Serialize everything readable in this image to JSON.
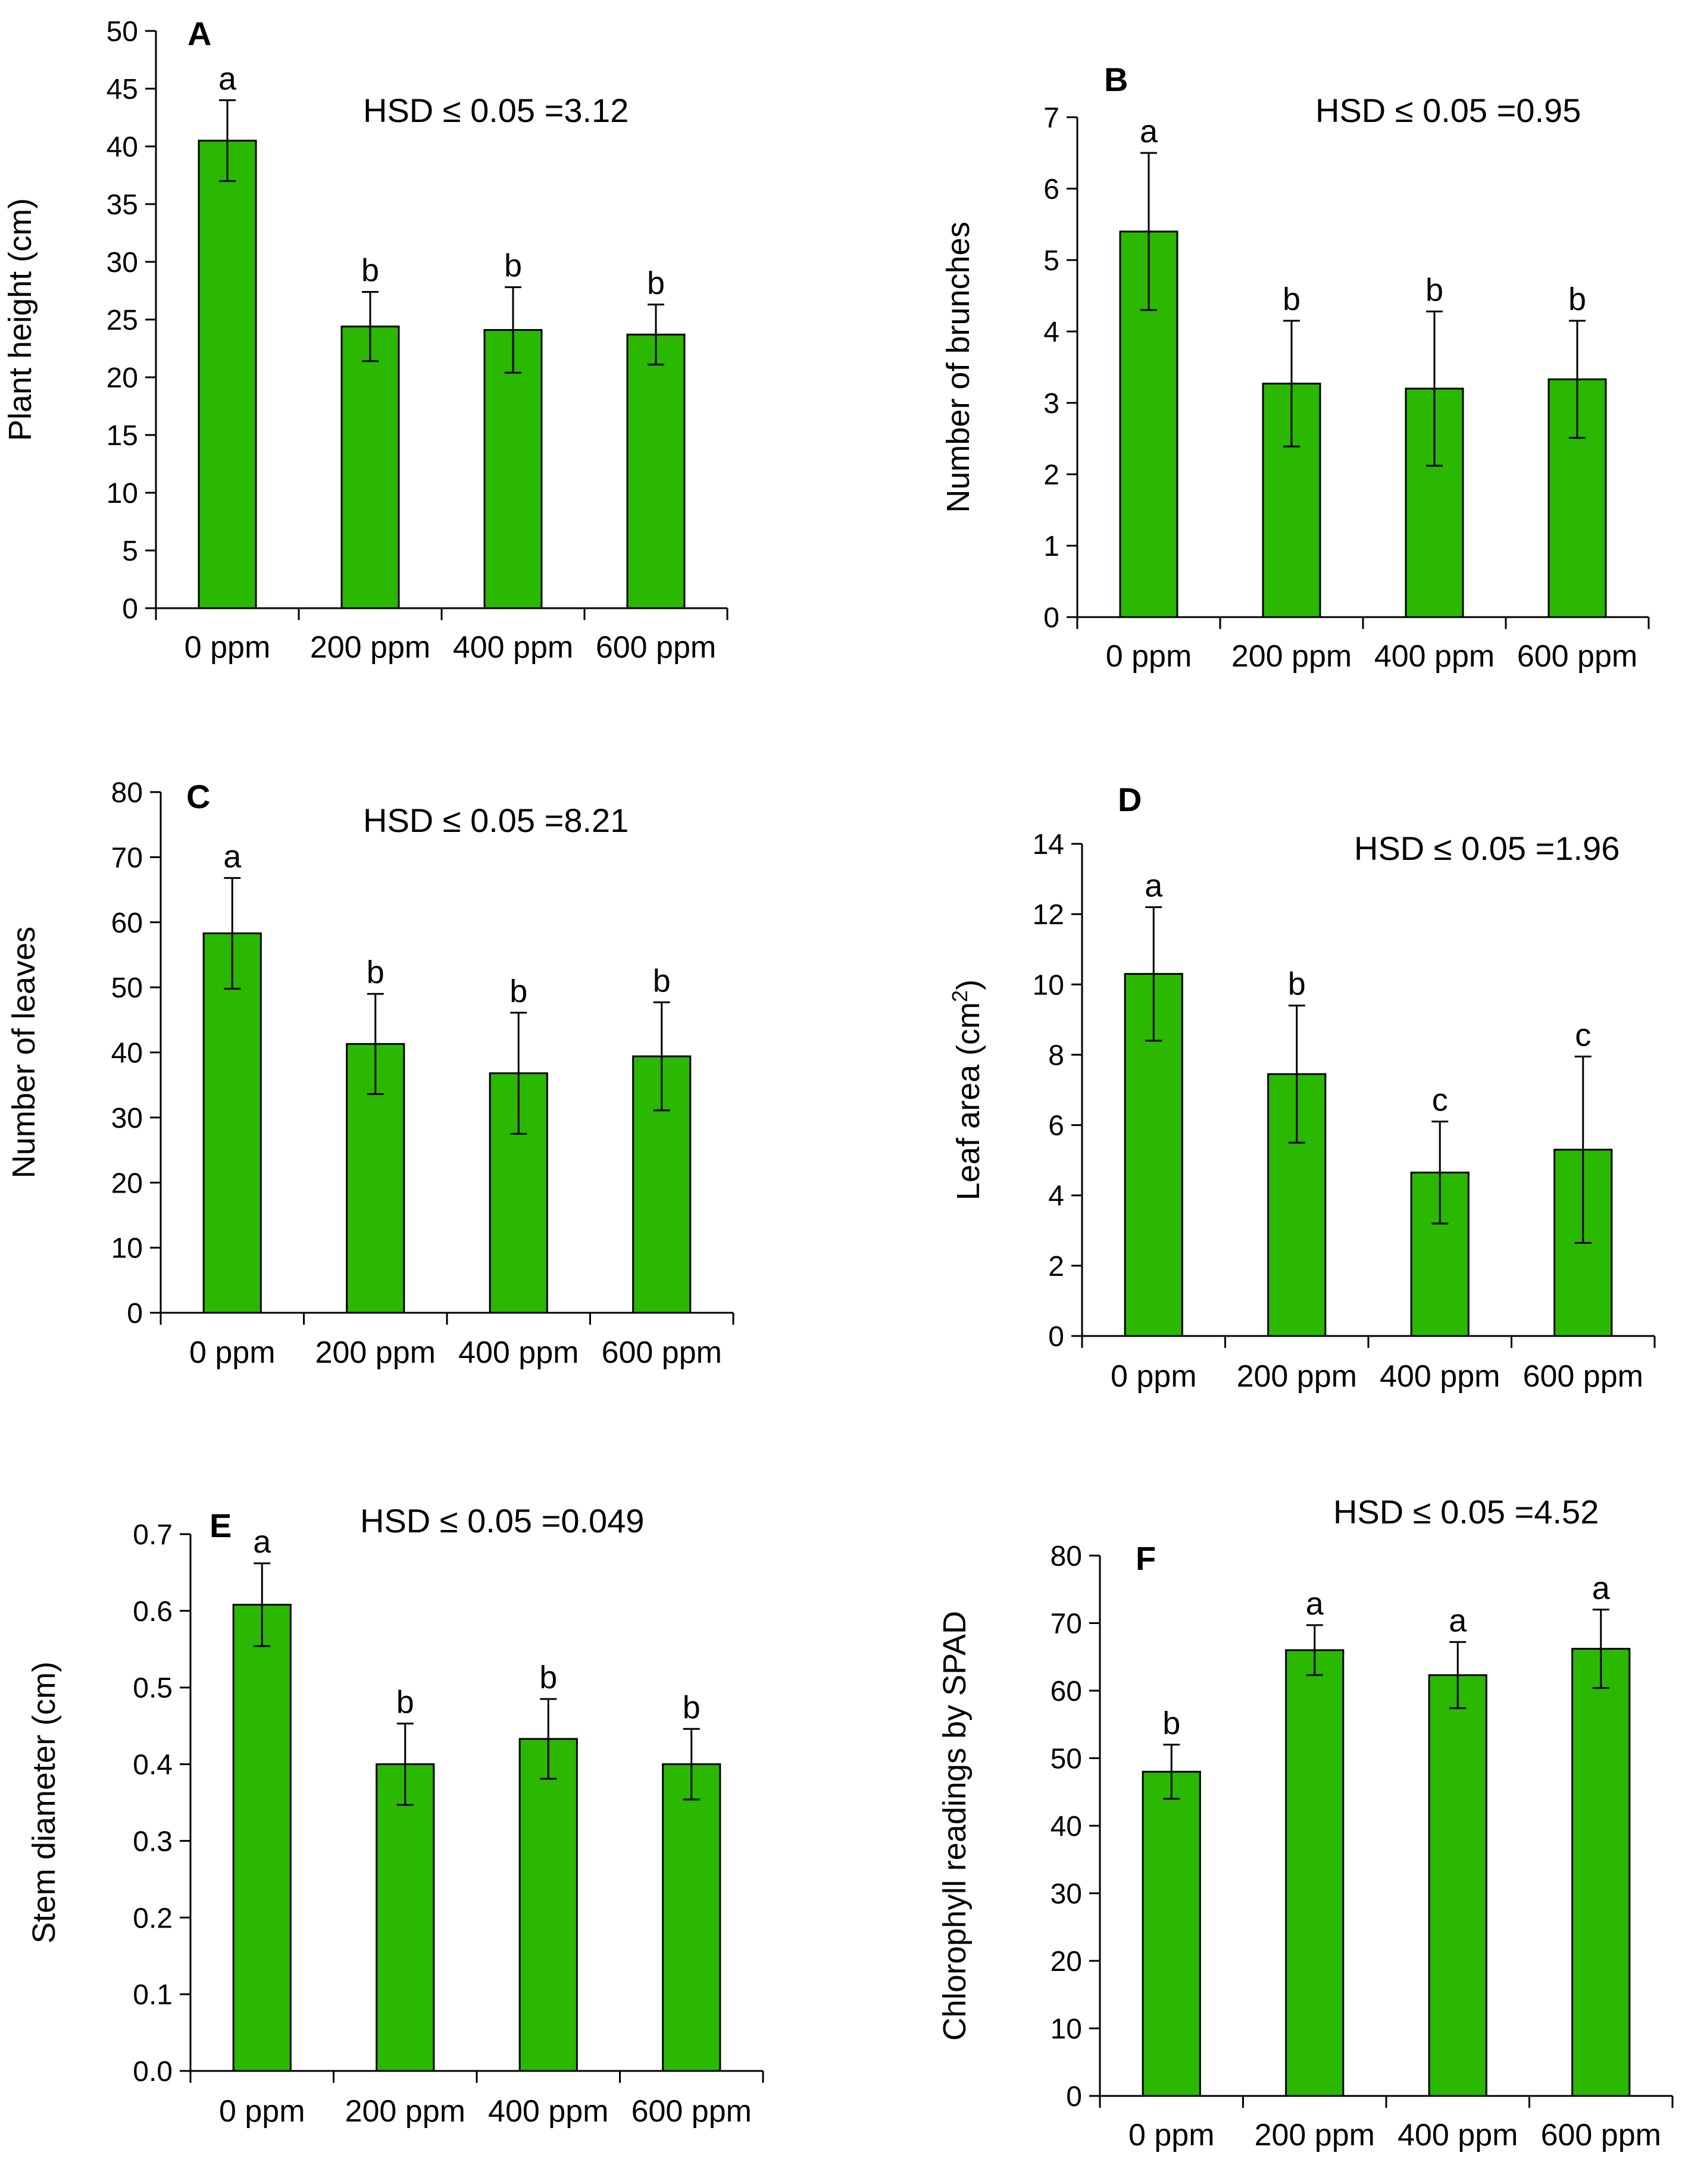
{
  "colors": {
    "bar_fill": "#2ab800",
    "bar_stroke": "#000000",
    "axis": "#000000"
  },
  "chart_data": [
    {
      "type": "bar",
      "panel": "A",
      "hsd_label": "HSD ≤ 0.05 =3.12",
      "ylabel": "Plant height (cm)",
      "xlabel": "",
      "categories": [
        "0 ppm",
        "200 ppm",
        "400 ppm",
        "600 ppm"
      ],
      "values": [
        40.5,
        24.4,
        24.1,
        23.7
      ],
      "errors": [
        3.5,
        3.0,
        3.7,
        2.6
      ],
      "letters": [
        "a",
        "b",
        "b",
        "b"
      ],
      "ylim": [
        0,
        50
      ],
      "yticks": [
        0,
        5,
        10,
        15,
        20,
        25,
        30,
        35,
        40,
        45,
        50
      ]
    },
    {
      "type": "bar",
      "panel": "B",
      "hsd_label": "HSD ≤ 0.05 =0.95",
      "ylabel": "Number of brunches",
      "xlabel": "",
      "categories": [
        "0 ppm",
        "200 ppm",
        "400 ppm",
        "600 ppm"
      ],
      "values": [
        5.4,
        3.27,
        3.2,
        3.33
      ],
      "errors": [
        1.1,
        0.88,
        1.08,
        0.82
      ],
      "letters": [
        "a",
        "b",
        "b",
        "b"
      ],
      "ylim": [
        0,
        7
      ],
      "yticks": [
        0,
        1,
        2,
        3,
        4,
        5,
        6,
        7
      ]
    },
    {
      "type": "bar",
      "panel": "C",
      "hsd_label": "HSD ≤ 0.05 =8.21",
      "ylabel": "Number of leaves",
      "xlabel": "",
      "categories": [
        "0 ppm",
        "200 ppm",
        "400 ppm",
        "600 ppm"
      ],
      "values": [
        58.3,
        41.3,
        36.8,
        39.4
      ],
      "errors": [
        8.5,
        7.7,
        9.3,
        8.3
      ],
      "letters": [
        "a",
        "b",
        "b",
        "b"
      ],
      "ylim": [
        0,
        80
      ],
      "yticks": [
        0,
        10,
        20,
        30,
        40,
        50,
        60,
        70,
        80
      ]
    },
    {
      "type": "bar",
      "panel": "D",
      "hsd_label": "HSD ≤ 0.05 =1.96",
      "ylabel": "Leaf area (cm",
      "ylabel_sup": "2",
      "ylabel_end": ")",
      "xlabel": "",
      "categories": [
        "0 ppm",
        "200 ppm",
        "400 ppm",
        "600 ppm"
      ],
      "values": [
        10.3,
        7.45,
        4.65,
        5.3
      ],
      "errors": [
        1.9,
        1.95,
        1.45,
        2.65
      ],
      "letters": [
        "a",
        "b",
        "c",
        "c"
      ],
      "ylim": [
        0,
        14
      ],
      "yticks": [
        0,
        2,
        4,
        6,
        8,
        10,
        12,
        14
      ]
    },
    {
      "type": "bar",
      "panel": "E",
      "hsd_label": "HSD ≤ 0.05 =0.049",
      "ylabel": "Stem diameter (cm)",
      "xlabel": "",
      "categories": [
        "0 ppm",
        "200 ppm",
        "400 ppm",
        "600 ppm"
      ],
      "values": [
        0.608,
        0.4,
        0.433,
        0.4
      ],
      "errors": [
        0.054,
        0.053,
        0.052,
        0.046
      ],
      "letters": [
        "a",
        "b",
        "b",
        "b"
      ],
      "ylim": [
        0,
        0.7
      ],
      "yticks": [
        "0.0",
        "0.1",
        "0.2",
        "0.3",
        "0.4",
        "0.5",
        "0.6",
        "0.7"
      ]
    },
    {
      "type": "bar",
      "panel": "F",
      "hsd_label": "HSD ≤ 0.05 =4.52",
      "ylabel": "Chlorophyll readings by SPAD",
      "xlabel": "",
      "categories": [
        "0 ppm",
        "200 ppm",
        "400 ppm",
        "600 ppm"
      ],
      "values": [
        48.0,
        66.0,
        62.3,
        66.2
      ],
      "errors": [
        4.0,
        3.7,
        4.9,
        5.8
      ],
      "letters": [
        "b",
        "a",
        "a",
        "a"
      ],
      "ylim": [
        0,
        80
      ],
      "yticks": [
        0,
        10,
        20,
        30,
        40,
        50,
        60,
        70,
        80
      ]
    }
  ]
}
